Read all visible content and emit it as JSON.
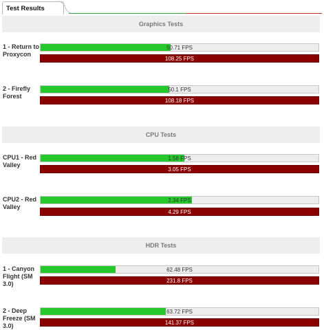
{
  "tab": {
    "title": "Test Results"
  },
  "sections": [
    {
      "title": "Graphics Tests",
      "tests": [
        {
          "label": "1 - Return to Proxycon",
          "score": "50.71 FPS",
          "max": "108.25 FPS",
          "fraction": 0.468
        },
        {
          "label": "2 - Firefly Forest",
          "score": "50.1 FPS",
          "max": "108.18 FPS",
          "fraction": 0.463
        }
      ]
    },
    {
      "title": "CPU Tests",
      "tests": [
        {
          "label": "CPU1 - Red Valley",
          "score": "1.58 FPS",
          "max": "3.05 FPS",
          "fraction": 0.518
        },
        {
          "label": "CPU2 - Red Valley",
          "score": "2.34 FPS",
          "max": "4.29 FPS",
          "fraction": 0.545
        }
      ]
    },
    {
      "title": "HDR Tests",
      "tests": [
        {
          "label": "1 - Canyon Flight (SM 3.0)",
          "score": "62.48 FPS",
          "max": "231.8 FPS",
          "fraction": 0.27
        },
        {
          "label": "2 - Deep Freeze (SM 3.0)",
          "score": "63.72 FPS",
          "max": "141.37 FPS",
          "fraction": 0.451
        }
      ]
    }
  ],
  "colors": {
    "score_fill": "#25c92b",
    "max_bar": "#8b0000",
    "track": "#ededed",
    "header_bg": "#eeeeee"
  }
}
